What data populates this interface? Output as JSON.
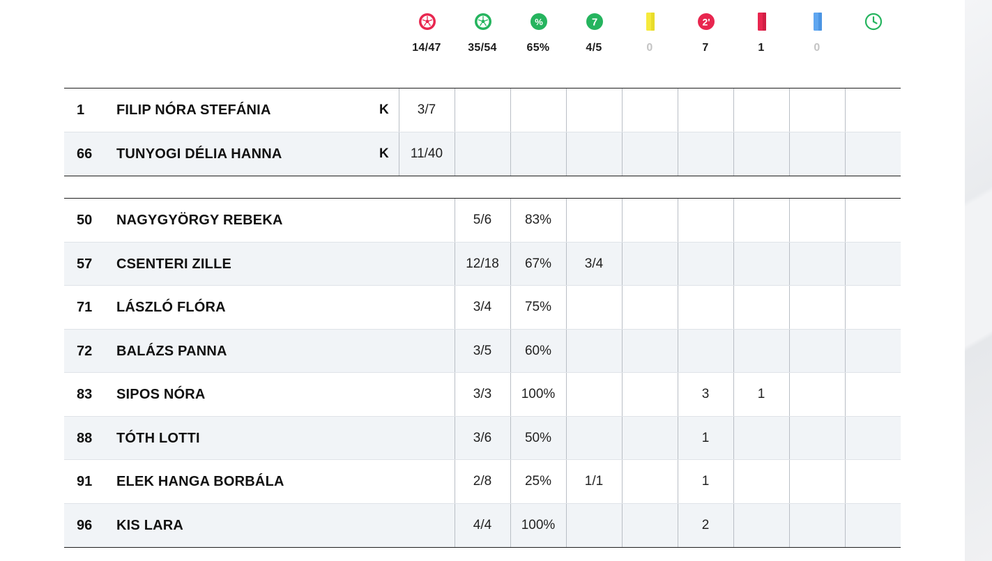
{
  "summary": [
    {
      "icon": "ball-red-icon",
      "value": "14/47",
      "muted": false
    },
    {
      "icon": "ball-green-icon",
      "value": "35/54",
      "muted": false
    },
    {
      "icon": "percent-icon",
      "value": "65%",
      "muted": false
    },
    {
      "icon": "seven-meter-icon",
      "value": "4/5",
      "muted": false
    },
    {
      "icon": "yellow-card-icon",
      "value": "0",
      "muted": true
    },
    {
      "icon": "two-minute-icon",
      "value": "7",
      "muted": false
    },
    {
      "icon": "red-card-icon",
      "value": "1",
      "muted": false
    },
    {
      "icon": "blue-card-icon",
      "value": "0",
      "muted": true
    },
    {
      "icon": "clock-icon",
      "value": "",
      "muted": false
    }
  ],
  "icon_labels": {
    "seven": "7",
    "percent": "%",
    "two_min": "2'"
  },
  "colors": {
    "red": "#e8264f",
    "green": "#25b45e",
    "yellow": "#f6ea3c",
    "blue": "#5fa6f0"
  },
  "goalkeepers": [
    {
      "number": "1",
      "name": "FILIP NÓRA STEFÁNIA",
      "badge": "K",
      "saves": "3/7",
      "goals": "",
      "pct": "",
      "seven": "",
      "yellow": "",
      "twomin": "",
      "red": "",
      "blue": "",
      "time": ""
    },
    {
      "number": "66",
      "name": "TUNYOGI DÉLIA HANNA",
      "badge": "K",
      "saves": "11/40",
      "goals": "",
      "pct": "",
      "seven": "",
      "yellow": "",
      "twomin": "",
      "red": "",
      "blue": "",
      "time": ""
    }
  ],
  "players": [
    {
      "number": "50",
      "name": "NAGYGYÖRGY REBEKA",
      "goals": "5/6",
      "pct": "83%",
      "seven": "",
      "yellow": "",
      "twomin": "",
      "red": "",
      "blue": "",
      "time": ""
    },
    {
      "number": "57",
      "name": "CSENTERI ZILLE",
      "goals": "12/18",
      "pct": "67%",
      "seven": "3/4",
      "yellow": "",
      "twomin": "",
      "red": "",
      "blue": "",
      "time": ""
    },
    {
      "number": "71",
      "name": "LÁSZLÓ FLÓRA",
      "goals": "3/4",
      "pct": "75%",
      "seven": "",
      "yellow": "",
      "twomin": "",
      "red": "",
      "blue": "",
      "time": ""
    },
    {
      "number": "72",
      "name": "BALÁZS PANNA",
      "goals": "3/5",
      "pct": "60%",
      "seven": "",
      "yellow": "",
      "twomin": "",
      "red": "",
      "blue": "",
      "time": ""
    },
    {
      "number": "83",
      "name": "SIPOS NÓRA",
      "goals": "3/3",
      "pct": "100%",
      "seven": "",
      "yellow": "",
      "twomin": "3",
      "red": "1",
      "blue": "",
      "time": ""
    },
    {
      "number": "88",
      "name": "TÓTH LOTTI",
      "goals": "3/6",
      "pct": "50%",
      "seven": "",
      "yellow": "",
      "twomin": "1",
      "red": "",
      "blue": "",
      "time": ""
    },
    {
      "number": "91",
      "name": "ELEK HANGA BORBÁLA",
      "goals": "2/8",
      "pct": "25%",
      "seven": "1/1",
      "yellow": "",
      "twomin": "1",
      "red": "",
      "blue": "",
      "time": ""
    },
    {
      "number": "96",
      "name": "KIS LARA",
      "goals": "4/4",
      "pct": "100%",
      "seven": "",
      "yellow": "",
      "twomin": "2",
      "red": "",
      "blue": "",
      "time": ""
    }
  ]
}
